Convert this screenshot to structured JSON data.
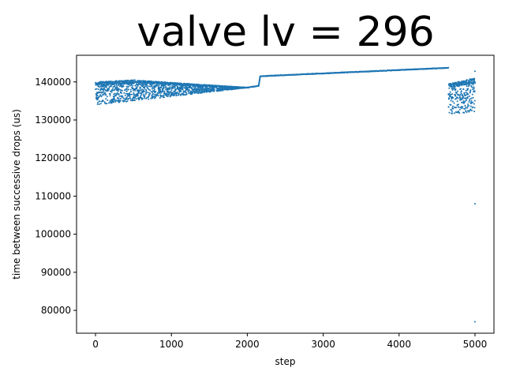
{
  "chart_data": {
    "type": "scatter",
    "title": "valve lv = 296",
    "xlabel": "step",
    "ylabel": "time between successive drops (us)",
    "xlim": [
      -250,
      5250
    ],
    "ylim": [
      74000,
      147000
    ],
    "xticks": [
      0,
      1000,
      2000,
      3000,
      4000,
      5000
    ],
    "yticks": [
      80000,
      90000,
      100000,
      110000,
      120000,
      130000,
      140000
    ],
    "grid": false,
    "marker_color": "#1f77b4",
    "marker_size": 1,
    "series": [
      {
        "name": "",
        "segments": [
          {
            "x_range": [
              0,
              500
            ],
            "band_low": [
              134000,
              135000
            ],
            "band_high": [
              140000,
              140500
            ],
            "density": "dense scatter"
          },
          {
            "x_range": [
              500,
              2000
            ],
            "band_low": [
              135000,
              138500
            ],
            "band_high": [
              140500,
              138500
            ],
            "density": "narrowing scatter"
          },
          {
            "x_range": [
              2000,
              2150
            ],
            "line": [
              138500,
              139000
            ]
          },
          {
            "x_range": [
              2150,
              2170
            ],
            "line": [
              139000,
              141500
            ],
            "note": "step jump"
          },
          {
            "x_range": [
              2170,
              4650
            ],
            "line": [
              141500,
              143700
            ]
          },
          {
            "x_range": [
              4650,
              5000
            ],
            "band_low": [
              131500,
              132000
            ],
            "band_high": [
              139500,
              141000
            ],
            "density": "sparse scatter"
          }
        ],
        "outliers": [
          {
            "x": 5000,
            "y": 142800
          },
          {
            "x": 5000,
            "y": 108000
          },
          {
            "x": 5000,
            "y": 77000
          }
        ]
      }
    ]
  }
}
